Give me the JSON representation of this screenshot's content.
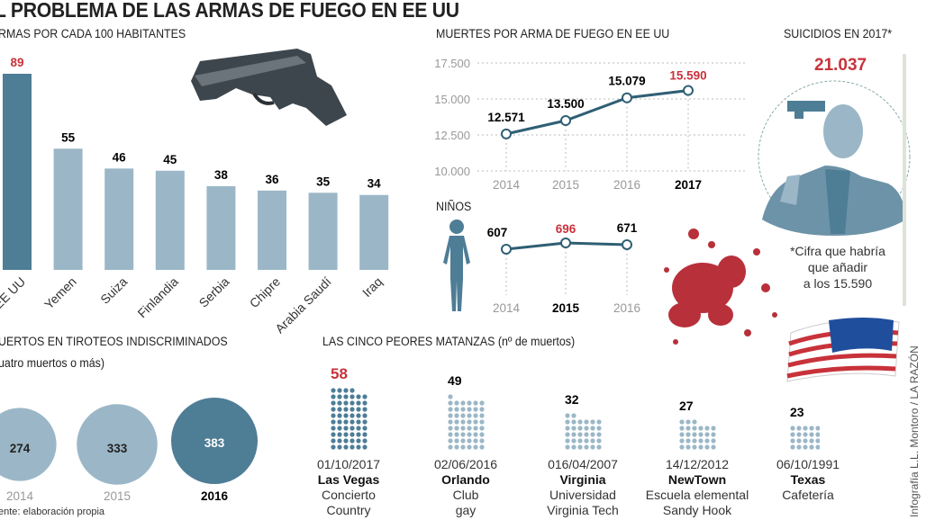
{
  "title": "L PROBLEMA DE LAS ARMAS DE FUEGO EN EE UU",
  "colors": {
    "dark_blue": "#4e7d96",
    "light_blue": "#9bb7c7",
    "red": "#c8323a",
    "line": "#2f5f74"
  },
  "chart_data": [
    {
      "type": "bar",
      "title": "RMAS POR CADA 100 HABITANTES",
      "categories": [
        "EE UU",
        "Yemen",
        "Suiza",
        "Finlandia",
        "Serbia",
        "Chipre",
        "Arabia Saudí",
        "Iraq"
      ],
      "values": [
        89,
        55,
        46,
        45,
        38,
        36,
        35,
        34
      ],
      "value_labels": [
        "89",
        "55",
        "46",
        "45",
        "38",
        "36",
        "35",
        "34"
      ],
      "highlight": "EE UU",
      "ylim": [
        0,
        89
      ]
    },
    {
      "type": "line",
      "title": "MUERTES POR ARMA DE FUEGO EN EE UU",
      "x": [
        "2014",
        "2015",
        "2016",
        "2017"
      ],
      "values": [
        12571,
        13500,
        15079,
        15590
      ],
      "value_labels": [
        "12.571",
        "13.500",
        "15.079",
        "15.590"
      ],
      "yticks": [
        "17.500",
        "15.000",
        "12.500",
        "10.000"
      ],
      "ytick_values": [
        17500,
        15000,
        12500,
        10000
      ],
      "ylim": [
        10000,
        17500
      ],
      "grid": true,
      "highlight": "2017"
    },
    {
      "type": "line",
      "title": "NIÑOS",
      "x": [
        "2014",
        "2015",
        "2016"
      ],
      "values": [
        607,
        696,
        671
      ],
      "value_labels": [
        "607",
        "696",
        "671"
      ],
      "highlight": "2015"
    },
    {
      "type": "bubble",
      "title": "UERTOS EN TIROTEOS INDISCRIMINADOS",
      "subtitle": "uatro muertos o más)",
      "x": [
        "2014",
        "2015",
        "2016"
      ],
      "values": [
        274,
        333,
        383
      ],
      "value_labels": [
        "274",
        "333",
        "383"
      ],
      "highlight": "2016"
    },
    {
      "type": "pictogram",
      "title": "LAS CINCO PEORES MATANZAS (nº de muertos)",
      "items": [
        {
          "value": 58,
          "label": "58",
          "date": "01/10/2017",
          "place": "Las Vegas",
          "desc1": "Concierto",
          "desc2": "Country"
        },
        {
          "value": 49,
          "label": "49",
          "date": "02/06/2016",
          "place": "Orlando",
          "desc1": "Club",
          "desc2": "gay"
        },
        {
          "value": 32,
          "label": "32",
          "date": "016/04/2007",
          "place": "Virginia",
          "desc1": "Universidad",
          "desc2": "Virginia Tech"
        },
        {
          "value": 27,
          "label": "27",
          "date": "14/12/2012",
          "place": "NewTown",
          "desc1": "Escuela elemental",
          "desc2": "Sandy Hook"
        },
        {
          "value": 23,
          "label": "23",
          "date": "06/10/1991",
          "place": "Texas",
          "desc1": "Cafetería",
          "desc2": ""
        }
      ],
      "highlight": "58"
    }
  ],
  "suicides": {
    "title": "SUICIDIOS EN 2017*",
    "value": "21.037",
    "note1": "*Cifra que habría",
    "note2": "que añadir",
    "note3": "a los 15.590"
  },
  "source": "ente: elaboración propia",
  "credit": "Infografía L.L. Montoro / LA RAZÓN",
  "images": [
    "pistol",
    "child-silhouette",
    "suicide-illustration",
    "blood-splatter",
    "us-flag"
  ]
}
